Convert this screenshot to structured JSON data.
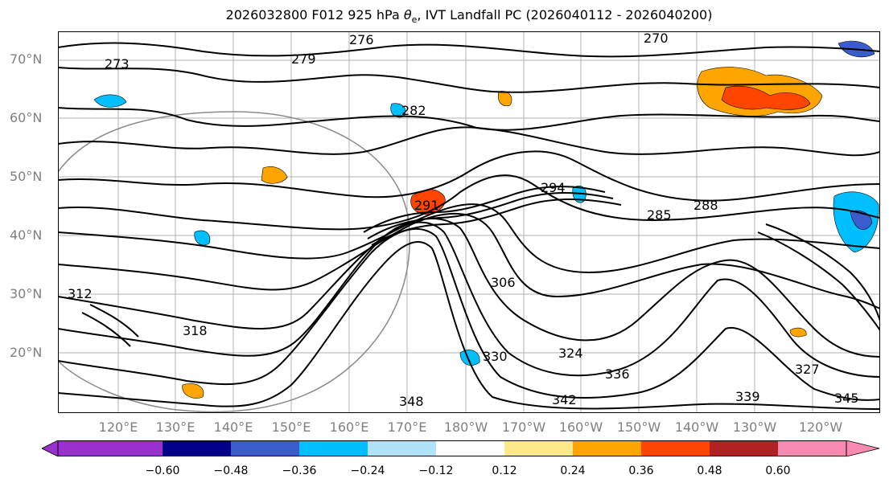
{
  "title": {
    "text_prefix": "2026032800 F012 925 hPa ",
    "theta": "θ",
    "theta_sub": "e",
    "text_suffix": ", IVT Landfall PC (2026040112 - 2026040200)"
  },
  "lat_labels": [
    "70°N",
    "60°N",
    "50°N",
    "40°N",
    "30°N",
    "20°N"
  ],
  "lon_labels": [
    "120°E",
    "130°E",
    "140°E",
    "150°E",
    "160°E",
    "170°E",
    "180°W",
    "170°W",
    "160°W",
    "150°W",
    "140°W",
    "130°W",
    "120°W"
  ],
  "colorbar": {
    "ticks": [
      "−0.60",
      "−0.48",
      "−0.36",
      "−0.24",
      "−0.12",
      "0.12",
      "0.24",
      "0.36",
      "0.48",
      "0.60"
    ],
    "under_color": "#9b30d0",
    "over_color": "#f78ab0",
    "colors": [
      "#00008b",
      "#3a5ccc",
      "#00bfff",
      "#b0e2f8",
      "#ffffff",
      "#fde98a",
      "#ffa500",
      "#ff4500",
      "#b22222"
    ]
  },
  "contour_labels": [
    "270",
    "273",
    "276",
    "279",
    "282",
    "285",
    "288",
    "291",
    "294",
    "306",
    "312",
    "318",
    "324",
    "327",
    "330",
    "336",
    "339",
    "342",
    "345",
    "348"
  ]
}
